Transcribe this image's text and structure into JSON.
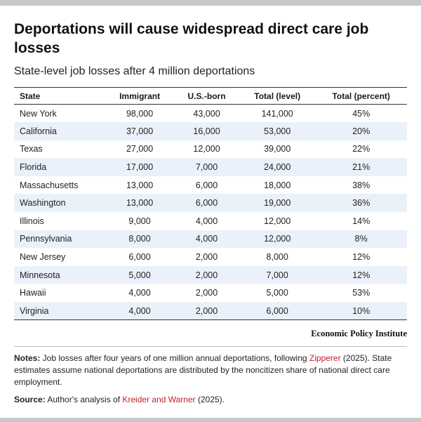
{
  "title": "Deportations will cause widespread direct care job losses",
  "subtitle": "State-level job losses after 4 million deportations",
  "chart_data": {
    "type": "table",
    "columns": [
      "State",
      "Immigrant",
      "U.S.-born",
      "Total (level)",
      "Total (percent)"
    ],
    "rows": [
      [
        "New York",
        "98,000",
        "43,000",
        "141,000",
        "45%"
      ],
      [
        "California",
        "37,000",
        "16,000",
        "53,000",
        "20%"
      ],
      [
        "Texas",
        "27,000",
        "12,000",
        "39,000",
        "22%"
      ],
      [
        "Florida",
        "17,000",
        "7,000",
        "24,000",
        "21%"
      ],
      [
        "Massachusetts",
        "13,000",
        "6,000",
        "18,000",
        "38%"
      ],
      [
        "Washington",
        "13,000",
        "6,000",
        "19,000",
        "36%"
      ],
      [
        "Illinois",
        "9,000",
        "4,000",
        "12,000",
        "14%"
      ],
      [
        "Pennsylvania",
        "8,000",
        "4,000",
        "12,000",
        "8%"
      ],
      [
        "New Jersey",
        "6,000",
        "2,000",
        "8,000",
        "12%"
      ],
      [
        "Minnesota",
        "5,000",
        "2,000",
        "7,000",
        "12%"
      ],
      [
        "Hawaii",
        "4,000",
        "2,000",
        "5,000",
        "53%"
      ],
      [
        "Virginia",
        "4,000",
        "2,000",
        "6,000",
        "10%"
      ]
    ]
  },
  "brand": "Economic Policy Institute",
  "notes": {
    "label": "Notes:",
    "text_before": " Job losses after four years of one million annual deportations, following ",
    "link": "Zipperer",
    "text_after": " (2025). State estimates assume national deportations are distributed by the noncitizen share of national direct care employment."
  },
  "source": {
    "label": "Source:",
    "text_before": " Author's analysis of ",
    "link": "Kreider and Warner",
    "text_after": " (2025)."
  },
  "colors": {
    "stripe": "#eaf1fa",
    "link": "#c41e2a"
  }
}
